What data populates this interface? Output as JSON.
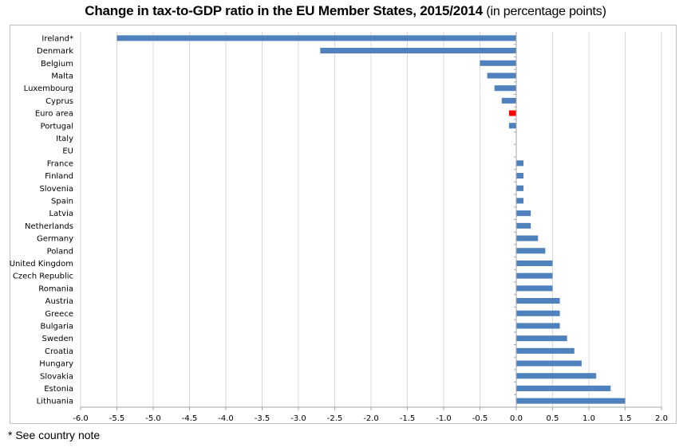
{
  "title": {
    "main": "Change in tax-to-GDP ratio in the EU Member States, 2015/2014",
    "sub": "(in percentage points)"
  },
  "footnote": "* See country note",
  "colors": {
    "bar": "#4f81bd",
    "highlight": "#ff0000",
    "grid": "#d9d9d9",
    "axis": "#a6a6a6"
  },
  "chart_data": {
    "type": "bar",
    "orientation": "horizontal",
    "title": "Change in tax-to-GDP ratio in the EU Member States, 2015/2014 (in percentage points)",
    "xlabel": "",
    "ylabel": "",
    "xlim": [
      -6.0,
      2.0
    ],
    "x_ticks": [
      "-6.0",
      "-5.5",
      "-5.0",
      "-4.5",
      "-4.0",
      "-3.5",
      "-3.0",
      "-2.5",
      "-2.0",
      "-1.5",
      "-1.0",
      "-0.5",
      "0.0",
      "0.5",
      "1.0",
      "1.5",
      "2.0"
    ],
    "grid": "vertical",
    "legend": "none",
    "categories": [
      "Ireland*",
      "Denmark",
      "Belgium",
      "Malta",
      "Luxembourg",
      "Cyprus",
      "Euro area",
      "Portugal",
      "Italy",
      "EU",
      "France",
      "Finland",
      "Slovenia",
      "Spain",
      "Latvia",
      "Netherlands",
      "Germany",
      "Poland",
      "United Kingdom",
      "Czech Republic",
      "Romania",
      "Austria",
      "Greece",
      "Bulgaria",
      "Sweden",
      "Croatia",
      "Hungary",
      "Slovakia",
      "Estonia",
      "Lithuania"
    ],
    "values": [
      -5.5,
      -2.7,
      -0.5,
      -0.4,
      -0.3,
      -0.2,
      -0.1,
      -0.1,
      0.0,
      0.0,
      0.1,
      0.1,
      0.1,
      0.1,
      0.2,
      0.2,
      0.3,
      0.4,
      0.5,
      0.5,
      0.5,
      0.6,
      0.6,
      0.6,
      0.7,
      0.8,
      0.9,
      1.1,
      1.3,
      1.5
    ],
    "highlighted": [
      "Euro area"
    ]
  }
}
